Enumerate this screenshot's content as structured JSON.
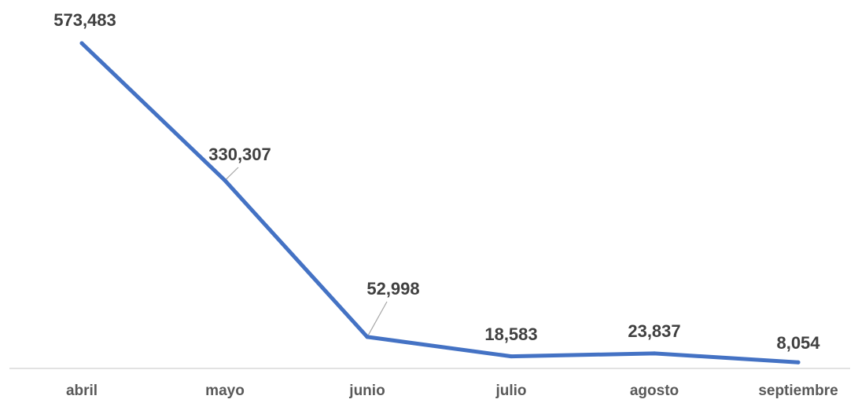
{
  "chart_data": {
    "type": "line",
    "title": "",
    "xlabel": "",
    "ylabel": "",
    "categories": [
      "abril",
      "mayo",
      "junio",
      "julio",
      "agosto",
      "septiembre"
    ],
    "series": [
      {
        "values": [
          573483,
          330307,
          52998,
          18583,
          23837,
          8054
        ],
        "labels": [
          "573,483",
          "330,307",
          "52,998",
          "18,583",
          "23,837",
          "8,054"
        ]
      }
    ],
    "ylim": [
      0,
      573483
    ],
    "grid": false,
    "legend": "none",
    "colors": {
      "line": "#4472C4",
      "axis": "#D9D9D9",
      "label": "#404040",
      "tick": "#595959",
      "leader": "#A6A6A6"
    }
  }
}
